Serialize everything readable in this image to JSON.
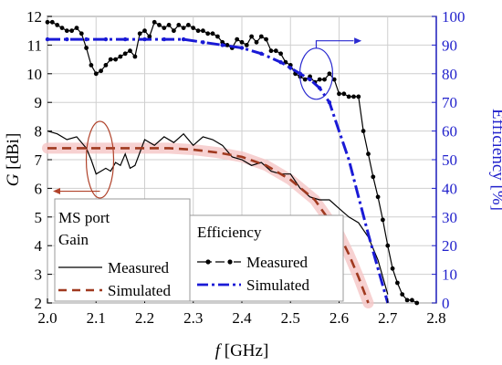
{
  "chart_data": {
    "type": "line",
    "xlabel_italic": "f",
    "xlabel_unit": " [GHz]",
    "ylabel_left_italic": "G",
    "ylabel_left_unit": " [dBi]",
    "ylabel_right": "Efficiency [%]",
    "xlim": [
      2.0,
      2.8
    ],
    "ylim_left": [
      2,
      12
    ],
    "ylim_right": [
      0,
      100
    ],
    "x_ticks": [
      "2.0",
      "2.1",
      "2.2",
      "2.3",
      "2.4",
      "2.5",
      "2.6",
      "2.7",
      "2.8"
    ],
    "y_left_ticks": [
      "2",
      "3",
      "4",
      "5",
      "6",
      "7",
      "8",
      "9",
      "10",
      "11",
      "12"
    ],
    "y_right_ticks": [
      "0",
      "10",
      "20",
      "30",
      "40",
      "50",
      "60",
      "70",
      "80",
      "90",
      "100"
    ],
    "grid": true,
    "colors": {
      "left_axis": "#000000",
      "right_axis": "#2222cc",
      "simulated_gain": "#a0391f",
      "simulated_eff": "#1a1ad6",
      "measured": "#000000",
      "annotation_red": "#b0422a",
      "annotation_blue": "#2a2ad0",
      "highlight": "#f5c6c6"
    },
    "legend_left": {
      "title_line1": "MS port",
      "title_line2": "Gain",
      "measured": "Measured",
      "simulated": "Simulated"
    },
    "legend_right": {
      "title": "Efficiency",
      "measured": "Measured",
      "simulated": "Simulated"
    },
    "series": [
      {
        "name": "Gain Measured",
        "axis": "left",
        "style": "solid",
        "x": [
          2.0,
          2.02,
          2.04,
          2.06,
          2.08,
          2.09,
          2.1,
          2.11,
          2.12,
          2.13,
          2.14,
          2.15,
          2.16,
          2.17,
          2.18,
          2.2,
          2.22,
          2.24,
          2.26,
          2.28,
          2.3,
          2.32,
          2.34,
          2.36,
          2.38,
          2.4,
          2.42,
          2.44,
          2.46,
          2.48,
          2.5,
          2.52,
          2.54,
          2.56,
          2.58,
          2.6,
          2.62,
          2.64,
          2.66,
          2.68,
          2.7
        ],
        "y": [
          8.0,
          7.9,
          7.7,
          7.8,
          7.4,
          7.0,
          6.5,
          6.6,
          6.7,
          6.6,
          6.9,
          6.8,
          7.2,
          6.7,
          6.8,
          7.7,
          7.5,
          7.8,
          7.6,
          7.9,
          7.5,
          7.8,
          7.7,
          7.5,
          7.1,
          7.0,
          6.8,
          6.9,
          6.6,
          6.5,
          6.5,
          6.0,
          5.7,
          5.6,
          5.6,
          5.3,
          5.0,
          4.8,
          4.3,
          3.5,
          2.3
        ]
      },
      {
        "name": "Gain Simulated",
        "axis": "left",
        "style": "dashed",
        "x": [
          2.0,
          2.05,
          2.1,
          2.15,
          2.2,
          2.25,
          2.3,
          2.35,
          2.4,
          2.45,
          2.5,
          2.55,
          2.6,
          2.62,
          2.64,
          2.66
        ],
        "y": [
          7.4,
          7.4,
          7.4,
          7.4,
          7.4,
          7.4,
          7.35,
          7.25,
          7.1,
          6.8,
          6.3,
          5.6,
          4.4,
          3.7,
          2.9,
          2.0
        ]
      },
      {
        "name": "Efficiency Measured",
        "axis": "right",
        "style": "dot-solid",
        "x": [
          2.0,
          2.01,
          2.02,
          2.03,
          2.04,
          2.05,
          2.06,
          2.07,
          2.08,
          2.09,
          2.1,
          2.11,
          2.12,
          2.13,
          2.14,
          2.15,
          2.16,
          2.17,
          2.18,
          2.19,
          2.2,
          2.21,
          2.22,
          2.23,
          2.24,
          2.25,
          2.26,
          2.27,
          2.28,
          2.29,
          2.3,
          2.31,
          2.32,
          2.33,
          2.34,
          2.35,
          2.36,
          2.37,
          2.38,
          2.39,
          2.4,
          2.41,
          2.42,
          2.43,
          2.44,
          2.45,
          2.46,
          2.47,
          2.48,
          2.49,
          2.5,
          2.51,
          2.52,
          2.53,
          2.54,
          2.55,
          2.56,
          2.57,
          2.58,
          2.59,
          2.6,
          2.61,
          2.62,
          2.63,
          2.64,
          2.65,
          2.66,
          2.67,
          2.68,
          2.69,
          2.7,
          2.71,
          2.72,
          2.73,
          2.74,
          2.75,
          2.76
        ],
        "y": [
          98,
          98,
          97,
          96,
          95,
          95,
          96,
          94,
          89,
          83,
          80,
          81,
          83,
          85,
          85,
          86,
          87,
          88,
          86,
          94,
          95,
          93,
          98,
          97,
          96,
          97,
          95,
          97,
          96,
          97,
          96,
          95,
          95,
          94,
          94,
          93,
          91,
          90,
          89,
          92,
          91,
          90,
          93,
          91,
          93,
          92,
          88,
          88,
          87,
          84,
          83,
          80,
          79,
          78,
          79,
          77,
          78,
          78,
          80,
          78,
          73,
          73,
          72,
          72,
          72,
          60,
          52,
          44,
          37,
          29,
          20,
          12,
          7,
          3,
          1,
          1,
          0
        ]
      },
      {
        "name": "Efficiency Simulated",
        "axis": "right",
        "style": "dash-dot",
        "x": [
          2.0,
          2.04,
          2.08,
          2.12,
          2.16,
          2.2,
          2.24,
          2.28,
          2.32,
          2.36,
          2.4,
          2.44,
          2.48,
          2.5,
          2.52,
          2.54,
          2.56,
          2.58,
          2.6,
          2.62,
          2.64,
          2.66,
          2.68,
          2.7
        ],
        "y": [
          92,
          92,
          92,
          92,
          92,
          92,
          92,
          92,
          91,
          90,
          89,
          87,
          84,
          82,
          80,
          78,
          75,
          70,
          60,
          50,
          37,
          24,
          12,
          0
        ]
      }
    ]
  }
}
